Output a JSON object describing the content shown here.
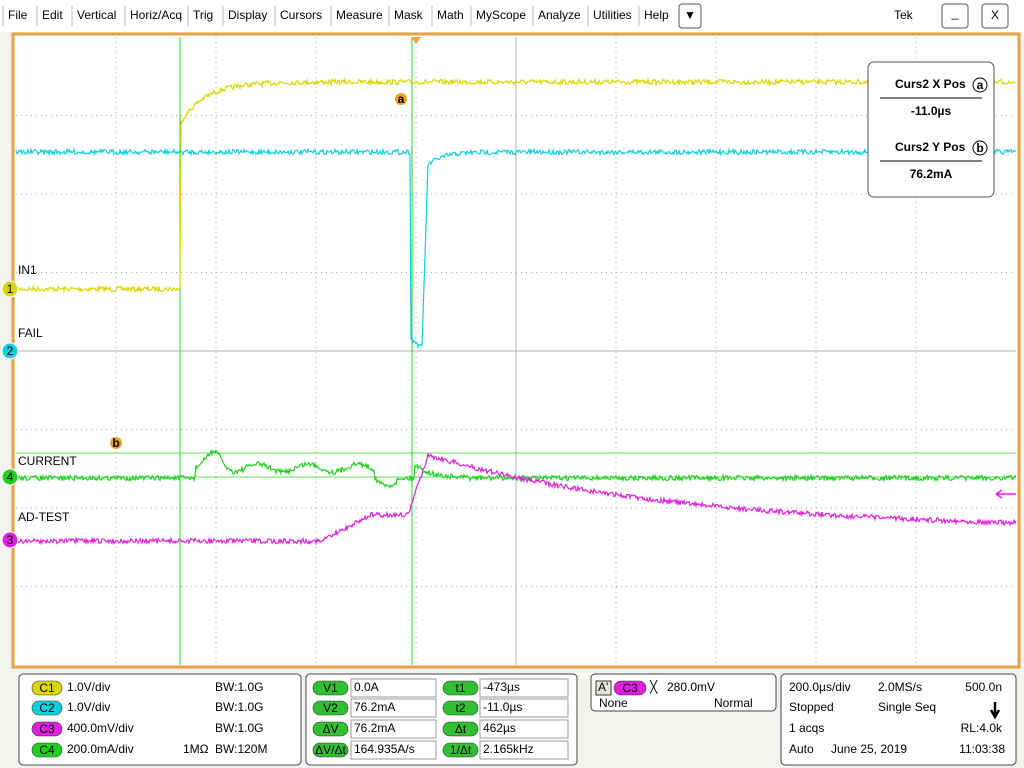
{
  "menu": {
    "items": [
      "File",
      "Edit",
      "Vertical",
      "Horiz/Acq",
      "Trig",
      "Display",
      "Cursors",
      "Measure",
      "Mask",
      "Math",
      "MyScope",
      "Analyze",
      "Utilities",
      "Help"
    ],
    "dropdown": "▼",
    "brand": "Tek",
    "minimize": "_",
    "close": "X"
  },
  "screen": {
    "channel_labels": [
      "IN1",
      "FAIL",
      "CURRENT",
      "AD-TEST"
    ],
    "channel_markers": [
      "1",
      "2",
      "4",
      "3"
    ],
    "cursor_markers": [
      "a",
      "b"
    ]
  },
  "cursor_readout": {
    "x_label": "Curs2 X Pos",
    "x_marker": "a",
    "x_value": "-11.0µs",
    "y_label": "Curs2 Y Pos",
    "y_marker": "b",
    "y_value": "76.2mA"
  },
  "channels": [
    {
      "id": "C1",
      "scale": "1.0V/div",
      "bandwidth": "BW:1.0G"
    },
    {
      "id": "C2",
      "scale": "1.0V/div",
      "bandwidth": "BW:1.0G"
    },
    {
      "id": "C3",
      "scale": "400.0mV/div",
      "bandwidth": "BW:1.0G"
    },
    {
      "id": "C4",
      "scale": "200.0mA/div",
      "impedance": "1MΩ",
      "bandwidth": "BW:120M"
    }
  ],
  "measurements": {
    "left": [
      {
        "label": "V1",
        "value": "0.0A"
      },
      {
        "label": "V2",
        "value": "76.2mA"
      },
      {
        "label": "ΔV",
        "value": "76.2mA"
      },
      {
        "label": "ΔV/Δt",
        "value": "164.935A/s"
      }
    ],
    "right": [
      {
        "label": "t1",
        "value": "-473µs"
      },
      {
        "label": "t2",
        "value": "-11.0µs"
      },
      {
        "label": "Δt",
        "value": "462µs"
      },
      {
        "label": "1/Δt",
        "value": "2.165kHz"
      }
    ]
  },
  "trigger": {
    "mode_label": "A'",
    "source": "C3",
    "symbol": "╳",
    "level": "280.0mV",
    "coupling": "None",
    "type": "Normal"
  },
  "acquisition": {
    "time_div": "200.0µs/div",
    "sample_rate": "2.0MS/s",
    "resolution": "500.0n",
    "state": "Stopped",
    "sequence": "Single Seq",
    "acqs": "1 acqs",
    "record_length": "RL:4.0k",
    "trigger_mode": "Auto",
    "date": "June 25, 2019",
    "time": "11:03:38"
  }
}
